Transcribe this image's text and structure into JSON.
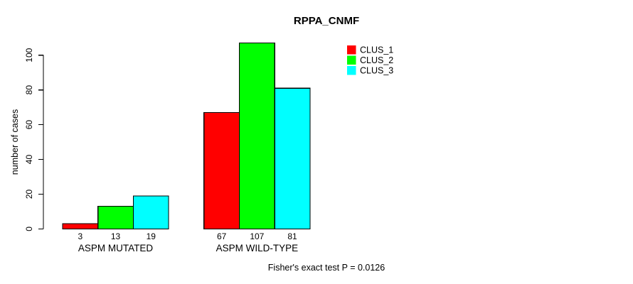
{
  "figure": {
    "background": "#ffffff",
    "text_color": "#000000",
    "bar_border_color": "#000000"
  },
  "chart_data": {
    "type": "bar",
    "title": "RPPA_CNMF",
    "categories": [
      "ASPM MUTATED",
      "ASPM WILD-TYPE"
    ],
    "series": [
      {
        "name": "CLUS_1",
        "color": "#ff0000",
        "values": [
          3,
          67
        ]
      },
      {
        "name": "CLUS_2",
        "color": "#00ff00",
        "values": [
          13,
          107
        ]
      },
      {
        "name": "CLUS_3",
        "color": "#00ffff",
        "values": [
          19,
          81
        ]
      }
    ],
    "bar_value_labels": [
      [
        "3",
        "13",
        "19"
      ],
      [
        "67",
        "107",
        "81"
      ]
    ],
    "xlabel": "",
    "ylabel": "number of cases",
    "ylim": [
      0,
      100
    ],
    "yticks": [
      0,
      20,
      40,
      60,
      80,
      100
    ],
    "grid": false,
    "legend_position": "top-right",
    "legend_items": [
      {
        "label": "CLUS_1",
        "color": "#ff0000"
      },
      {
        "label": "CLUS_2",
        "color": "#00ff00"
      },
      {
        "label": "CLUS_3",
        "color": "#00ffff"
      }
    ],
    "annotation": "Fisher's exact test P = 0.0126"
  }
}
